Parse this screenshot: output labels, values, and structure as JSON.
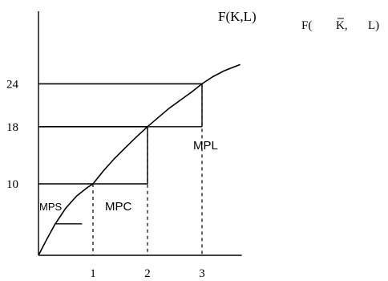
{
  "chart_data": {
    "type": "line",
    "x_ticks": [
      {
        "value": 1,
        "label": "1"
      },
      {
        "value": 2,
        "label": "2"
      },
      {
        "value": 3,
        "label": "3"
      }
    ],
    "y_ticks": [
      {
        "value": 10,
        "label": "10"
      },
      {
        "value": 18,
        "label": "18"
      },
      {
        "value": 24,
        "label": "24"
      }
    ],
    "xlim": [
      0,
      3.7
    ],
    "ylim": [
      0,
      31
    ],
    "series": [
      {
        "name": "F(K,L)",
        "x": [
          0,
          0.15,
          0.3,
          0.5,
          0.7,
          0.9,
          1,
          1.2,
          1.4,
          1.6,
          1.8,
          2,
          2.2,
          2.4,
          2.6,
          2.8,
          3,
          3.2,
          3.4,
          3.6,
          3.7
        ],
        "y": [
          0,
          2.2,
          4.3,
          6.6,
          8.3,
          9.5,
          10,
          11.9,
          13.6,
          15.1,
          16.6,
          18,
          19.3,
          20.6,
          21.7,
          22.8,
          24,
          25,
          25.8,
          26.4,
          26.7
        ]
      }
    ],
    "curve_labels": {
      "production_function": "F(K,L)",
      "fixed_capital": "F(",
      "fixed_capital_k": "K,",
      "fixed_capital_l": "L)"
    },
    "guides": [
      {
        "x": 1,
        "y": 10
      },
      {
        "x": 2,
        "y": 18
      },
      {
        "x": 3,
        "y": 24
      }
    ],
    "steps": [
      {
        "x0": 1,
        "x1": 2,
        "y0": 10,
        "y1": 18
      },
      {
        "x0": 2,
        "x1": 3,
        "y0": 18,
        "y1": 24
      }
    ],
    "mps_marker": {
      "x0": 0.3,
      "x1": 0.8,
      "y": 4.4
    },
    "annotations": {
      "mps": "MPS",
      "mpc": "MPC",
      "mpl": "MPL"
    },
    "grid": false,
    "legend": "none"
  }
}
